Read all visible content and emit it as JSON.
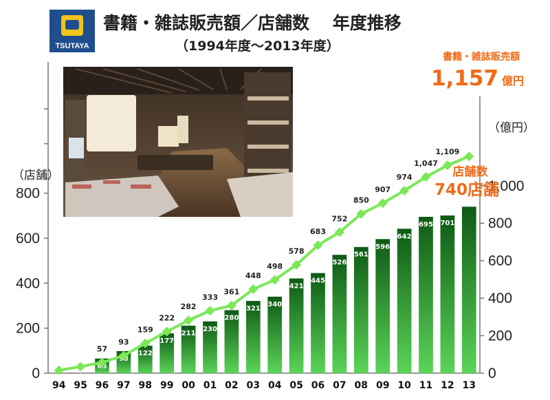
{
  "header": {
    "title": "書籍・雑誌販売額／店舗数　 年度推移",
    "subtitle": "（1994年度〜2013年度）",
    "logo_text": "TSUTAYA"
  },
  "annotations": {
    "sales_label": "書籍・雑誌販売額",
    "sales_value": "1,157",
    "sales_unit": "億円",
    "stores_label": "店舗数",
    "stores_value": "740店舗"
  },
  "colors": {
    "bar_top": "#0e5a14",
    "bar_bottom": "#5bd458",
    "line": "#7be858",
    "accent": "#f06a18",
    "logo_bg": "#1f4e8c",
    "logo_fg": "#f2c31a"
  },
  "chart_data": {
    "type": "bar+line",
    "categories": [
      "94",
      "95",
      "96",
      "97",
      "98",
      "99",
      "00",
      "01",
      "02",
      "03",
      "04",
      "05",
      "06",
      "07",
      "08",
      "09",
      "10",
      "11",
      "12",
      "13"
    ],
    "series": [
      {
        "name": "店舗数",
        "type": "bar",
        "axis": "left",
        "values": [
          null,
          null,
          65,
          98,
          122,
          177,
          211,
          230,
          280,
          321,
          340,
          421,
          445,
          526,
          561,
          596,
          642,
          695,
          701,
          740
        ],
        "labels": [
          "",
          "",
          "65",
          "98",
          "122",
          "177",
          "211",
          "230",
          "280",
          "321",
          "340",
          "421",
          "445",
          "526",
          "561",
          "596",
          "642",
          "695",
          "701",
          ""
        ]
      },
      {
        "name": "書籍・雑誌販売額",
        "type": "line",
        "axis": "right",
        "values": [
          15,
          35,
          57,
          93,
          159,
          222,
          282,
          333,
          361,
          448,
          498,
          578,
          683,
          752,
          850,
          907,
          974,
          1047,
          1109,
          1157
        ],
        "labels": [
          "",
          "",
          "57",
          "93",
          "159",
          "222",
          "282",
          "333",
          "361",
          "448",
          "498",
          "578",
          "683",
          "752",
          "850",
          "907",
          "974",
          "1,047",
          "1,109",
          ""
        ]
      }
    ],
    "left_axis": {
      "label": "（店舗）",
      "ticks": [
        "0",
        "200",
        "400",
        "600",
        "800"
      ],
      "ylim": [
        0,
        1000
      ]
    },
    "right_axis": {
      "label": "（億円）",
      "ticks": [
        "0",
        "200",
        "400",
        "600",
        "800",
        "1,000"
      ],
      "ylim": [
        0,
        1200
      ]
    }
  }
}
